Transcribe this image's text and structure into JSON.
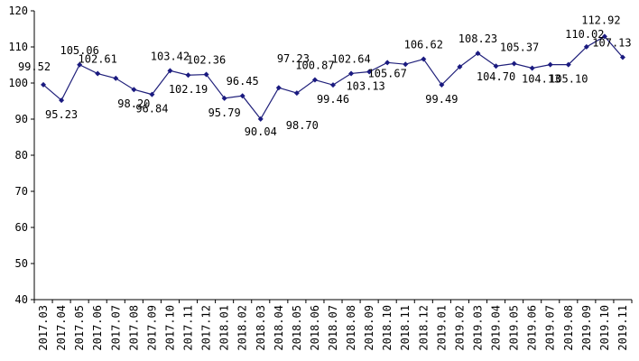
{
  "chart_data": {
    "type": "line",
    "title": "",
    "xlabel": "",
    "ylabel": "",
    "ylim": [
      40,
      120
    ],
    "yticks": [
      40,
      50,
      60,
      70,
      80,
      90,
      100,
      110,
      120
    ],
    "grid": false,
    "legend": "none",
    "colors": {
      "line": "#1f1f7a",
      "marker": "#1a1a80",
      "axis": "#000000"
    },
    "categories": [
      "2017.03",
      "2017.04",
      "2017.05",
      "2017.06",
      "2017.07",
      "2017.08",
      "2017.09",
      "2017.10",
      "2017.11",
      "2017.12",
      "2018.01",
      "2018.02",
      "2018.03",
      "2018.04",
      "2018.05",
      "2018.06",
      "2018.07",
      "2018.08",
      "2018.09",
      "2018.10",
      "2018.11",
      "2018.12",
      "2019.01",
      "2019.02",
      "2019.03",
      "2019.04",
      "2019.05",
      "2019.06",
      "2019.07",
      "2019.08",
      "2019.09",
      "2019.10",
      "2019.11"
    ],
    "series": [
      {
        "values": [
          99.52,
          95.23,
          105.06,
          102.61,
          101.3,
          98.2,
          96.84,
          103.42,
          102.19,
          102.36,
          95.79,
          96.45,
          90.04,
          98.7,
          97.23,
          100.87,
          99.46,
          102.64,
          103.13,
          105.67,
          105.2,
          106.62,
          99.49,
          104.5,
          108.23,
          104.7,
          105.37,
          104.13,
          105.1,
          105.1,
          110.02,
          112.92,
          107.13
        ],
        "labels": [
          "99.52",
          "95.23",
          "105.06",
          "102.61",
          "",
          "98.20",
          "96.84",
          "103.42",
          "102.19",
          "102.36",
          "95.79",
          "96.45",
          "90.04",
          "98.70",
          "97.23",
          "100.87",
          "99.46",
          "102.64",
          "103.13",
          "105.67",
          "",
          "106.62",
          "99.49",
          "",
          "108.23",
          "104.70",
          "105.37",
          "104.13",
          "",
          "105.10",
          "110.02",
          "112.92",
          "107.13"
        ]
      }
    ]
  }
}
